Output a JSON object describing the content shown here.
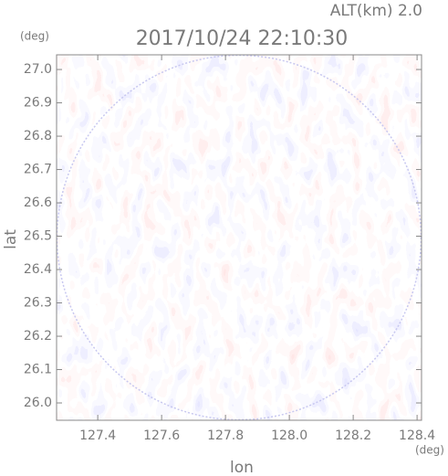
{
  "chart_data": {
    "type": "ppi",
    "title": "2017/10/24 22:10:30",
    "subtitle": "ALT(km) 2.0",
    "x_label": "lon",
    "y_label": "lat",
    "x_unit": "(deg)",
    "y_unit": "(deg)",
    "xlim": [
      127.271,
      128.414
    ],
    "ylim": [
      25.948,
      27.044
    ],
    "xticks": [
      127.4,
      127.6,
      127.8,
      {
        "value": 128.0,
        "label": "128.0"
      },
      128.2,
      128.4
    ],
    "yticks": [
      {
        "value": 26.0,
        "label": "26.0"
      },
      26.1,
      26.2,
      26.3,
      26.4,
      26.5,
      26.6,
      26.7,
      26.8,
      26.9,
      {
        "value": 27.0,
        "label": "27.0"
      }
    ]
  }
}
